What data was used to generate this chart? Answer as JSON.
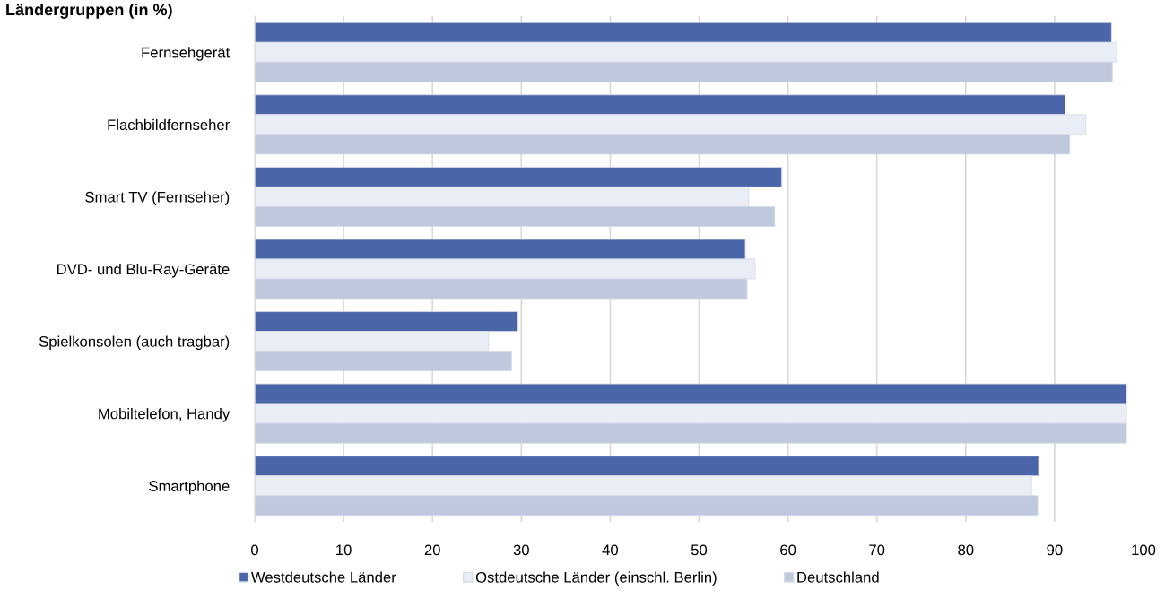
{
  "chart_data": {
    "type": "bar",
    "orientation": "horizontal",
    "title": "Ländergruppen (in %)",
    "categories": [
      "Fernsehgerät",
      "Flachbildfernseher",
      "Smart TV (Fernseher)",
      "DVD- und Blu-Ray-Geräte",
      "Spielkonsolen (auch tragbar)",
      "Mobiltelefon, Handy",
      "Smartphone"
    ],
    "series": [
      {
        "name": "Westdeutsche Länder",
        "color": "#4a66a9",
        "values": [
          96.4,
          91.2,
          59.3,
          55.2,
          29.6,
          98.1,
          88.2
        ]
      },
      {
        "name": "Ostdeutsche Länder (einschl. Berlin)",
        "color": "#e9edf5",
        "values": [
          97.0,
          93.5,
          55.6,
          56.3,
          26.3,
          98.1,
          87.4
        ]
      },
      {
        "name": "Deutschland",
        "color": "#bfc8dd",
        "values": [
          96.5,
          91.7,
          58.5,
          55.4,
          28.9,
          98.1,
          88.1
        ]
      }
    ],
    "xlim": [
      0,
      100
    ],
    "xticks": [
      0,
      10,
      20,
      30,
      40,
      50,
      60,
      70,
      80,
      90,
      100
    ],
    "grid": "x",
    "legend": "bottom"
  }
}
